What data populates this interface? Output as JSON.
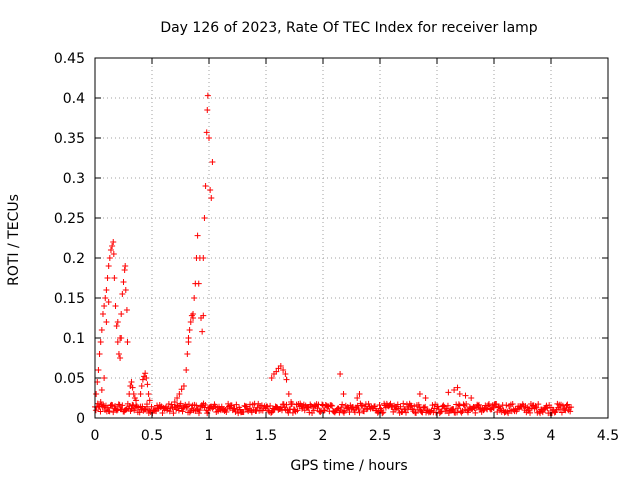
{
  "chart_data": {
    "type": "scatter",
    "title": "Day 126 of 2023, Rate Of TEC Index for receiver lamp",
    "xlabel": "GPS time / hours",
    "ylabel": "ROTI / TECUs",
    "xlim": [
      0,
      4.5
    ],
    "ylim": [
      0,
      0.45
    ],
    "x_ticks": [
      0,
      0.5,
      1,
      1.5,
      2,
      2.5,
      3,
      3.5,
      4,
      4.5
    ],
    "x_tick_labels": [
      "0",
      "0.5",
      "1",
      "1.5",
      "2",
      "2.5",
      "3",
      "3.5",
      "4",
      "4.5"
    ],
    "y_ticks": [
      0,
      0.05,
      0.1,
      0.15,
      0.2,
      0.25,
      0.3,
      0.35,
      0.4,
      0.45
    ],
    "y_tick_labels": [
      "0",
      "0.05",
      "0.1",
      "0.15",
      "0.2",
      "0.25",
      "0.3",
      "0.35",
      "0.4",
      "0.45"
    ],
    "grid": true,
    "marker": "+",
    "color": "#ff0000",
    "series": [
      {
        "name": "ROTI",
        "points": [
          [
            0.01,
            0.03
          ],
          [
            0.02,
            0.045
          ],
          [
            0.03,
            0.06
          ],
          [
            0.04,
            0.08
          ],
          [
            0.05,
            0.095
          ],
          [
            0.06,
            0.11
          ],
          [
            0.07,
            0.13
          ],
          [
            0.08,
            0.14
          ],
          [
            0.09,
            0.15
          ],
          [
            0.1,
            0.16
          ],
          [
            0.11,
            0.175
          ],
          [
            0.12,
            0.19
          ],
          [
            0.13,
            0.2
          ],
          [
            0.14,
            0.21
          ],
          [
            0.15,
            0.215
          ],
          [
            0.16,
            0.22
          ],
          [
            0.165,
            0.205
          ],
          [
            0.17,
            0.175
          ],
          [
            0.18,
            0.14
          ],
          [
            0.19,
            0.115
          ],
          [
            0.2,
            0.095
          ],
          [
            0.21,
            0.08
          ],
          [
            0.22,
            0.1
          ],
          [
            0.23,
            0.13
          ],
          [
            0.24,
            0.155
          ],
          [
            0.25,
            0.17
          ],
          [
            0.26,
            0.185
          ],
          [
            0.265,
            0.19
          ],
          [
            0.27,
            0.16
          ],
          [
            0.28,
            0.135
          ],
          [
            0.285,
            0.095
          ],
          [
            0.05,
            0.02
          ],
          [
            0.08,
            0.05
          ],
          [
            0.1,
            0.12
          ],
          [
            0.12,
            0.145
          ],
          [
            0.06,
            0.035
          ],
          [
            0.2,
            0.12
          ],
          [
            0.22,
            0.075
          ],
          [
            0.23,
            0.1
          ],
          [
            0.3,
            0.03
          ],
          [
            0.31,
            0.04
          ],
          [
            0.32,
            0.045
          ],
          [
            0.33,
            0.038
          ],
          [
            0.34,
            0.03
          ],
          [
            0.35,
            0.025
          ],
          [
            0.36,
            0.022
          ],
          [
            0.4,
            0.03
          ],
          [
            0.41,
            0.04
          ],
          [
            0.42,
            0.048
          ],
          [
            0.43,
            0.052
          ],
          [
            0.44,
            0.056
          ],
          [
            0.45,
            0.05
          ],
          [
            0.46,
            0.042
          ],
          [
            0.47,
            0.03
          ],
          [
            0.48,
            0.022
          ],
          [
            0.7,
            0.02
          ],
          [
            0.72,
            0.025
          ],
          [
            0.74,
            0.03
          ],
          [
            0.76,
            0.036
          ],
          [
            0.78,
            0.04
          ],
          [
            0.8,
            0.06
          ],
          [
            0.81,
            0.08
          ],
          [
            0.82,
            0.1
          ],
          [
            0.83,
            0.11
          ],
          [
            0.84,
            0.12
          ],
          [
            0.85,
            0.128
          ],
          [
            0.86,
            0.13
          ],
          [
            0.87,
            0.15
          ],
          [
            0.88,
            0.168
          ],
          [
            0.89,
            0.2
          ],
          [
            0.9,
            0.228
          ],
          [
            0.91,
            0.168
          ],
          [
            0.92,
            0.2
          ],
          [
            0.93,
            0.125
          ],
          [
            0.94,
            0.108
          ],
          [
            0.95,
            0.2
          ],
          [
            0.96,
            0.25
          ],
          [
            0.97,
            0.29
          ],
          [
            0.98,
            0.357
          ],
          [
            0.985,
            0.385
          ],
          [
            0.99,
            0.403
          ],
          [
            1.0,
            0.35
          ],
          [
            1.01,
            0.285
          ],
          [
            1.02,
            0.275
          ],
          [
            1.03,
            0.32
          ],
          [
            0.95,
            0.128
          ],
          [
            0.82,
            0.095
          ],
          [
            0.86,
            0.125
          ],
          [
            1.55,
            0.05
          ],
          [
            1.57,
            0.055
          ],
          [
            1.59,
            0.058
          ],
          [
            1.61,
            0.062
          ],
          [
            1.63,
            0.065
          ],
          [
            1.65,
            0.06
          ],
          [
            1.67,
            0.055
          ],
          [
            1.68,
            0.048
          ],
          [
            1.7,
            0.03
          ],
          [
            1.72,
            0.02
          ],
          [
            2.15,
            0.055
          ],
          [
            2.18,
            0.03
          ],
          [
            2.3,
            0.025
          ],
          [
            2.32,
            0.03
          ],
          [
            2.85,
            0.03
          ],
          [
            2.9,
            0.025
          ],
          [
            3.1,
            0.032
          ],
          [
            3.15,
            0.035
          ],
          [
            3.18,
            0.038
          ],
          [
            3.2,
            0.03
          ],
          [
            3.25,
            0.028
          ],
          [
            3.3,
            0.025
          ]
        ]
      }
    ]
  }
}
